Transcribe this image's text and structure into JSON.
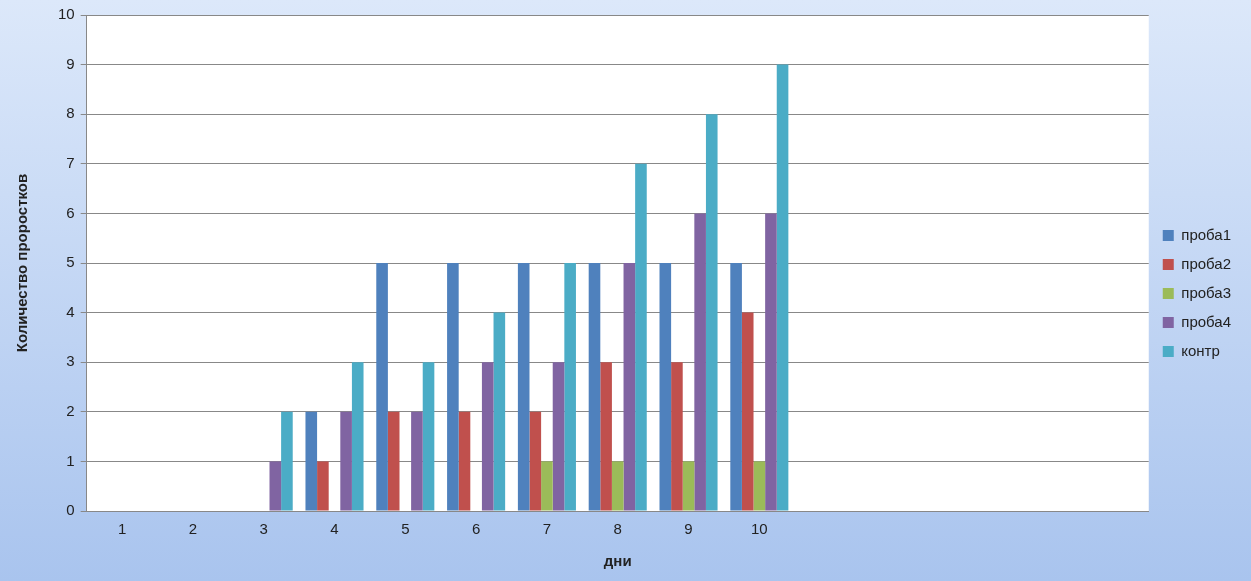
{
  "chart_data": {
    "type": "bar",
    "xlabel": "дни",
    "ylabel": "Количество проростков",
    "categories": [
      "1",
      "2",
      "3",
      "4",
      "5",
      "6",
      "7",
      "8",
      "9",
      "10",
      null,
      null,
      null,
      null,
      null
    ],
    "series": [
      {
        "name": "проба1",
        "color": "#4f81bd",
        "values": [
          0,
          0,
          0,
          2,
          5,
          5,
          5,
          5,
          5,
          5,
          null,
          null,
          null,
          null,
          null
        ]
      },
      {
        "name": "проба2",
        "color": "#c0504d",
        "values": [
          0,
          0,
          0,
          1,
          2,
          2,
          2,
          3,
          3,
          4,
          null,
          null,
          null,
          null,
          null
        ]
      },
      {
        "name": "проба3",
        "color": "#9bbb59",
        "values": [
          0,
          0,
          0,
          0,
          0,
          0,
          1,
          1,
          1,
          1,
          null,
          null,
          null,
          null,
          null
        ]
      },
      {
        "name": "проба4",
        "color": "#8064a2",
        "values": [
          0,
          0,
          1,
          2,
          2,
          3,
          3,
          5,
          6,
          6,
          null,
          null,
          null,
          null,
          null
        ]
      },
      {
        "name": "контр",
        "color": "#4bacc6",
        "values": [
          0,
          0,
          2,
          3,
          3,
          4,
          5,
          7,
          8,
          9,
          null,
          null,
          null,
          null,
          null
        ]
      }
    ],
    "ylim": [
      0,
      10
    ],
    "yticks": [
      0,
      1,
      2,
      3,
      4,
      5,
      6,
      7,
      8,
      9,
      10
    ],
    "grid": "y",
    "legend": "right"
  }
}
